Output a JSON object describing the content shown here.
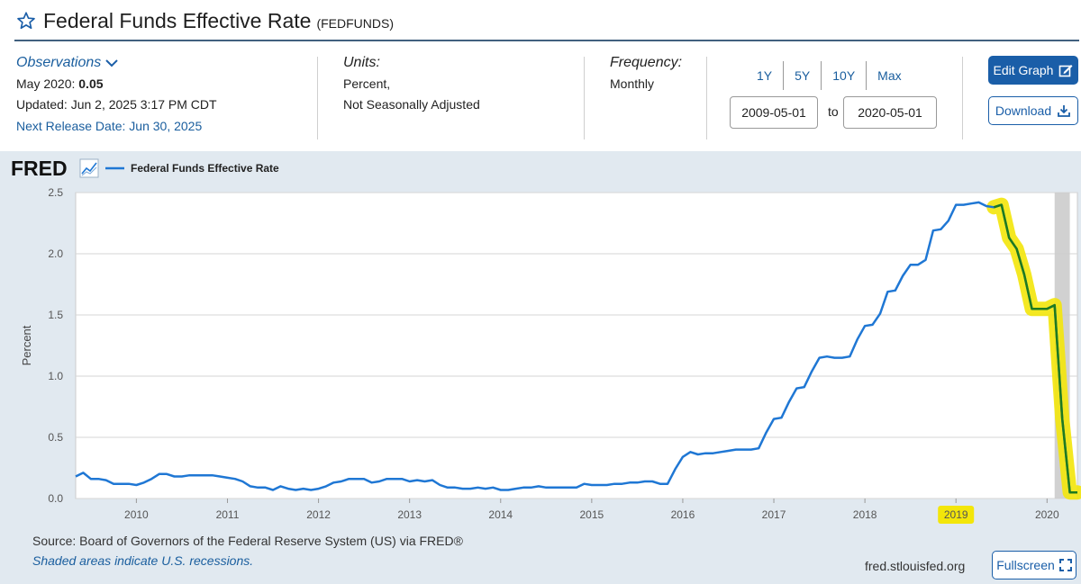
{
  "header": {
    "title": "Federal Funds Effective Rate",
    "series_id": "(FEDFUNDS)"
  },
  "observations": {
    "label": "Observations",
    "latest_prefix": "May 2020: ",
    "latest_value": "0.05",
    "updated": "Updated: Jun 2, 2025 3:17 PM CDT",
    "next_release": "Next Release Date: Jun 30, 2025"
  },
  "units": {
    "label": "Units:",
    "line1": "Percent,",
    "line2": "Not Seasonally Adjusted"
  },
  "frequency": {
    "label": "Frequency:",
    "value": "Monthly"
  },
  "range": {
    "buttons": [
      "1Y",
      "5Y",
      "10Y",
      "Max"
    ],
    "start": "2009-05-01",
    "to_label": "to",
    "end": "2020-05-01"
  },
  "actions": {
    "edit_graph": "Edit Graph",
    "download": "Download",
    "fullscreen": "Fullscreen"
  },
  "footer": {
    "source": "Source: Board of Governors of the Federal Reserve System (US) via FRED®",
    "recession_note": "Shaded areas indicate U.S. recessions.",
    "url": "fred.stlouisfed.org"
  },
  "colors": {
    "series_line": "#1f77d4",
    "highlight_marker": "#f3e60a",
    "green_trace": "#1e7a1e",
    "recession_shade": "#cccccc",
    "panel_bg": "#e1e9f0",
    "accent": "#1a5ea8"
  },
  "chart_data": {
    "type": "line",
    "logo": "FRED",
    "legend": "Federal Funds Effective Rate",
    "ylabel": "Percent",
    "xlabel": "",
    "ylim": [
      0,
      2.5
    ],
    "yticks": [
      "0.0",
      "0.5",
      "1.0",
      "1.5",
      "2.0",
      "2.5"
    ],
    "xticks": [
      "2010",
      "2011",
      "2012",
      "2013",
      "2014",
      "2015",
      "2016",
      "2017",
      "2018",
      "2019",
      "2020"
    ],
    "grid": true,
    "recession_shading": [
      [
        "2020-02",
        "2020-04"
      ]
    ],
    "x_start": "2009-05",
    "x_end": "2020-05",
    "series": [
      {
        "name": "Federal Funds Effective Rate",
        "values": [
          0.18,
          0.21,
          0.16,
          0.16,
          0.15,
          0.12,
          0.12,
          0.12,
          0.11,
          0.13,
          0.16,
          0.2,
          0.2,
          0.18,
          0.18,
          0.19,
          0.19,
          0.19,
          0.19,
          0.18,
          0.17,
          0.16,
          0.14,
          0.1,
          0.09,
          0.09,
          0.07,
          0.1,
          0.08,
          0.07,
          0.08,
          0.07,
          0.08,
          0.1,
          0.13,
          0.14,
          0.16,
          0.16,
          0.16,
          0.13,
          0.14,
          0.16,
          0.16,
          0.16,
          0.14,
          0.15,
          0.14,
          0.15,
          0.11,
          0.09,
          0.09,
          0.08,
          0.08,
          0.09,
          0.08,
          0.09,
          0.07,
          0.07,
          0.08,
          0.09,
          0.09,
          0.1,
          0.09,
          0.09,
          0.09,
          0.09,
          0.09,
          0.12,
          0.11,
          0.11,
          0.11,
          0.12,
          0.12,
          0.13,
          0.13,
          0.14,
          0.14,
          0.12,
          0.12,
          0.24,
          0.34,
          0.38,
          0.36,
          0.37,
          0.37,
          0.38,
          0.39,
          0.4,
          0.4,
          0.4,
          0.41,
          0.54,
          0.65,
          0.66,
          0.79,
          0.9,
          0.91,
          1.04,
          1.15,
          1.16,
          1.15,
          1.15,
          1.16,
          1.3,
          1.41,
          1.42,
          1.51,
          1.69,
          1.7,
          1.82,
          1.91,
          1.91,
          1.95,
          2.19,
          2.2,
          2.27,
          2.4,
          2.4,
          2.41,
          2.42,
          2.39,
          2.38,
          2.4,
          2.13,
          2.04,
          1.83,
          1.55,
          1.55,
          1.55,
          1.58,
          0.65,
          0.05,
          0.05
        ]
      }
    ],
    "highlight": {
      "label": "2019",
      "x_from": "2019-06",
      "x_to": "2020-05"
    }
  }
}
